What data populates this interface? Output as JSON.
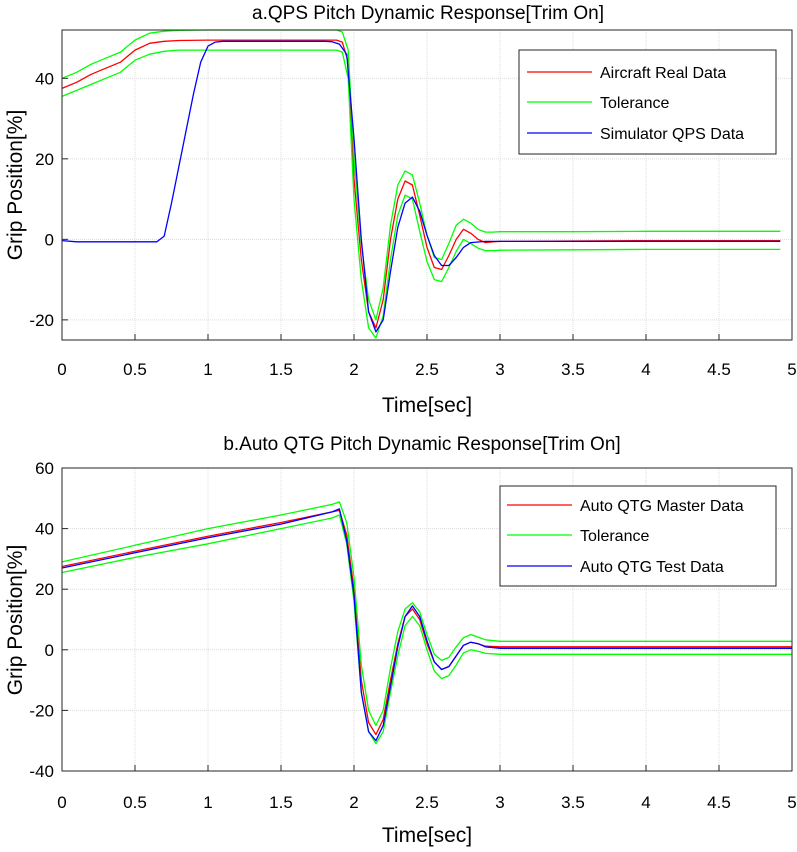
{
  "chart_data": [
    {
      "type": "line",
      "title": "a.QPS Pitch Dynamic Response[Trim On]",
      "xlabel": "Time[sec]",
      "ylabel": "Grip Position[%]",
      "xlim": [
        0,
        5
      ],
      "ylim": [
        -25,
        52
      ],
      "xticks": [
        0,
        0.5,
        1,
        1.5,
        2,
        2.5,
        3,
        3.5,
        4,
        4.5,
        5
      ],
      "xtick_labels": [
        "0",
        "0.5",
        "1",
        "1.5",
        "2",
        "2.5",
        "3",
        "3.5",
        "4",
        "4.5",
        "5"
      ],
      "yticks": [
        -20,
        0,
        20,
        40
      ],
      "ytick_labels": [
        "-20",
        "0",
        "20",
        "40"
      ],
      "grid": true,
      "legend_position": "top-right",
      "series": [
        {
          "name": "Aircraft Real Data",
          "color": "#ff0000",
          "x": [
            0,
            0.1,
            0.2,
            0.3,
            0.4,
            0.5,
            0.6,
            0.7,
            0.8,
            1.0,
            1.2,
            1.5,
            1.8,
            1.88,
            1.92,
            1.96,
            2.0,
            2.05,
            2.1,
            2.15,
            2.2,
            2.25,
            2.3,
            2.35,
            2.4,
            2.45,
            2.5,
            2.55,
            2.6,
            2.65,
            2.7,
            2.75,
            2.8,
            2.85,
            2.9,
            2.95,
            3.0,
            3.5,
            4.0,
            4.5,
            4.92
          ],
          "y": [
            37.5,
            39,
            41,
            42.5,
            44,
            47,
            48.7,
            49.2,
            49.4,
            49.5,
            49.5,
            49.5,
            49.5,
            49.5,
            49,
            44,
            15,
            -5,
            -18,
            -22,
            -15,
            0,
            10,
            14.5,
            13.5,
            6,
            -2,
            -7,
            -7.5,
            -4,
            0,
            2.5,
            1.5,
            0,
            -0.8,
            -0.6,
            -0.5,
            -0.4,
            -0.3,
            -0.3,
            -0.3
          ]
        },
        {
          "name": "Tolerance",
          "color": "#00ff00",
          "x": [
            0,
            0.1,
            0.2,
            0.3,
            0.4,
            0.5,
            0.6,
            0.7,
            0.8,
            1.0,
            1.2,
            1.5,
            1.8,
            1.88,
            1.92,
            1.96,
            2.0,
            2.05,
            2.1,
            2.15,
            2.2,
            2.25,
            2.3,
            2.35,
            2.4,
            2.45,
            2.5,
            2.55,
            2.6,
            2.65,
            2.7,
            2.75,
            2.8,
            2.85,
            2.9,
            2.95,
            3.0,
            3.5,
            4.0,
            4.5,
            4.92
          ],
          "y": [
            40,
            41.5,
            43.5,
            45,
            46.5,
            49.5,
            51.2,
            51.7,
            51.9,
            52,
            52,
            52,
            52,
            52,
            51.5,
            47,
            20,
            -1,
            -15,
            -20,
            -12,
            3.5,
            13.5,
            17,
            16,
            9,
            1,
            -4.5,
            -5,
            -1,
            3.5,
            5,
            4,
            2.5,
            1.8,
            1.8,
            1.9,
            1.9,
            2,
            2,
            2
          ]
        },
        {
          "name": "",
          "color": "#00ff00",
          "x": [
            0,
            0.1,
            0.2,
            0.3,
            0.4,
            0.5,
            0.6,
            0.7,
            0.8,
            1.0,
            1.2,
            1.5,
            1.8,
            1.88,
            1.92,
            1.96,
            2.0,
            2.05,
            2.1,
            2.15,
            2.2,
            2.25,
            2.3,
            2.35,
            2.4,
            2.45,
            2.5,
            2.55,
            2.6,
            2.65,
            2.7,
            2.75,
            2.8,
            2.85,
            2.9,
            2.95,
            3.0,
            3.5,
            4.0,
            4.5,
            4.92
          ],
          "y": [
            35.5,
            37,
            38.5,
            40,
            41.5,
            44.5,
            46,
            46.7,
            47,
            47,
            47,
            47,
            47,
            47,
            46.5,
            40,
            10,
            -10,
            -22,
            -24.5,
            -19,
            -5,
            6,
            11,
            10,
            2,
            -5.5,
            -10,
            -10.5,
            -7,
            -3,
            0,
            -1,
            -2.2,
            -2.8,
            -2.8,
            -2.7,
            -2.6,
            -2.5,
            -2.5,
            -2.5
          ]
        },
        {
          "name": "Simulator QPS Data",
          "color": "#0000ff",
          "x": [
            0,
            0.1,
            0.3,
            0.5,
            0.65,
            0.7,
            0.75,
            0.8,
            0.85,
            0.9,
            0.95,
            1.0,
            1.05,
            1.1,
            1.5,
            1.8,
            1.85,
            1.9,
            1.95,
            2.0,
            2.05,
            2.1,
            2.15,
            2.2,
            2.25,
            2.3,
            2.35,
            2.4,
            2.45,
            2.5,
            2.55,
            2.6,
            2.65,
            2.7,
            2.75,
            2.8,
            2.9,
            3.0,
            3.5,
            4.0,
            4.5,
            4.92
          ],
          "y": [
            -0.3,
            -0.6,
            -0.6,
            -0.6,
            -0.6,
            0.8,
            9,
            18,
            27,
            36,
            44,
            48,
            49,
            49.2,
            49.2,
            49.2,
            49.1,
            48.5,
            46,
            25,
            0,
            -18,
            -23,
            -20,
            -8,
            3,
            9,
            10.5,
            7,
            1,
            -4,
            -6.5,
            -6.5,
            -4.5,
            -2,
            -0.8,
            -0.5,
            -0.5,
            -0.5,
            -0.5,
            -0.5,
            -0.5
          ]
        }
      ]
    },
    {
      "type": "line",
      "title": "b.Auto QTG Pitch Dynamic Response[Trim On]",
      "xlabel": "Time[sec]",
      "ylabel": "Grip Position[%]",
      "xlim": [
        0,
        5
      ],
      "ylim": [
        -40,
        60
      ],
      "xticks": [
        0,
        0.5,
        1,
        1.5,
        2,
        2.5,
        3,
        3.5,
        4,
        4.5,
        5
      ],
      "xtick_labels": [
        "0",
        "0.5",
        "1",
        "1.5",
        "2",
        "2.5",
        "3",
        "3.5",
        "4",
        "4.5",
        "5"
      ],
      "yticks": [
        -40,
        -20,
        0,
        20,
        40,
        60
      ],
      "ytick_labels": [
        "-40",
        "-20",
        "0",
        "20",
        "40",
        "60"
      ],
      "grid": true,
      "legend_position": "top-right",
      "series": [
        {
          "name": "Auto QTG Master Data",
          "color": "#ff0000",
          "x": [
            0,
            0.5,
            1.0,
            1.5,
            1.85,
            1.9,
            1.95,
            2.0,
            2.05,
            2.1,
            2.15,
            2.2,
            2.25,
            2.3,
            2.35,
            2.4,
            2.45,
            2.5,
            2.55,
            2.6,
            2.65,
            2.7,
            2.75,
            2.8,
            2.85,
            2.9,
            3.0,
            3.5,
            4.0,
            4.5,
            5.0
          ],
          "y": [
            27.5,
            32.5,
            37.5,
            42,
            45.5,
            46,
            38,
            20,
            -10,
            -24,
            -28,
            -23,
            -10,
            2,
            11,
            13.5,
            10,
            2,
            -4,
            -6.5,
            -5.5,
            -2,
            1.5,
            2.5,
            2,
            1.2,
            1,
            1,
            1,
            1,
            1
          ]
        },
        {
          "name": "Tolerance",
          "color": "#00ff00",
          "x": [
            0,
            0.5,
            1.0,
            1.5,
            1.85,
            1.9,
            1.95,
            2.0,
            2.05,
            2.1,
            2.15,
            2.2,
            2.25,
            2.3,
            2.35,
            2.4,
            2.45,
            2.5,
            2.55,
            2.6,
            2.65,
            2.7,
            2.75,
            2.8,
            2.85,
            2.9,
            3.0,
            3.5,
            4.0,
            4.5,
            5.0
          ],
          "y": [
            29,
            34.5,
            40,
            44.5,
            48,
            48.8,
            42,
            24,
            -5,
            -20,
            -25,
            -20,
            -6,
            6,
            13.5,
            15.5,
            12.5,
            5,
            -1.5,
            -3.5,
            -2.5,
            1,
            4,
            5,
            4.2,
            3.3,
            2.8,
            2.8,
            2.8,
            2.8,
            2.8
          ]
        },
        {
          "name": "",
          "color": "#00ff00",
          "x": [
            0,
            0.5,
            1.0,
            1.5,
            1.85,
            1.9,
            1.95,
            2.0,
            2.05,
            2.1,
            2.15,
            2.2,
            2.25,
            2.3,
            2.35,
            2.4,
            2.45,
            2.5,
            2.55,
            2.6,
            2.65,
            2.7,
            2.75,
            2.8,
            2.85,
            2.9,
            3.0,
            3.5,
            4.0,
            4.5,
            5.0
          ],
          "y": [
            25.5,
            30.5,
            35,
            40,
            43.5,
            44.5,
            35,
            16,
            -14,
            -27,
            -31,
            -27,
            -14,
            -2,
            8,
            11,
            8,
            0,
            -7,
            -9.5,
            -8.5,
            -5,
            -1,
            0,
            -0.5,
            -1.2,
            -1.5,
            -1.5,
            -1.5,
            -1.5,
            -1.5
          ]
        },
        {
          "name": "Auto QTG Test Data",
          "color": "#0000ff",
          "x": [
            0,
            0.5,
            1.0,
            1.5,
            1.85,
            1.9,
            1.95,
            2.0,
            2.05,
            2.1,
            2.15,
            2.2,
            2.25,
            2.3,
            2.35,
            2.4,
            2.45,
            2.5,
            2.55,
            2.6,
            2.65,
            2.7,
            2.75,
            2.8,
            2.85,
            2.9,
            3.0,
            3.5,
            4.0,
            4.5,
            5.0
          ],
          "y": [
            27,
            32,
            37,
            41.5,
            45.5,
            46.5,
            36,
            18,
            -14,
            -27,
            -30,
            -25,
            -12,
            1,
            11,
            14.5,
            11,
            3,
            -4,
            -6.5,
            -5.5,
            -2,
            1.5,
            2.5,
            2,
            1,
            0.5,
            0.5,
            0.5,
            0.5,
            0.5
          ]
        }
      ]
    }
  ]
}
